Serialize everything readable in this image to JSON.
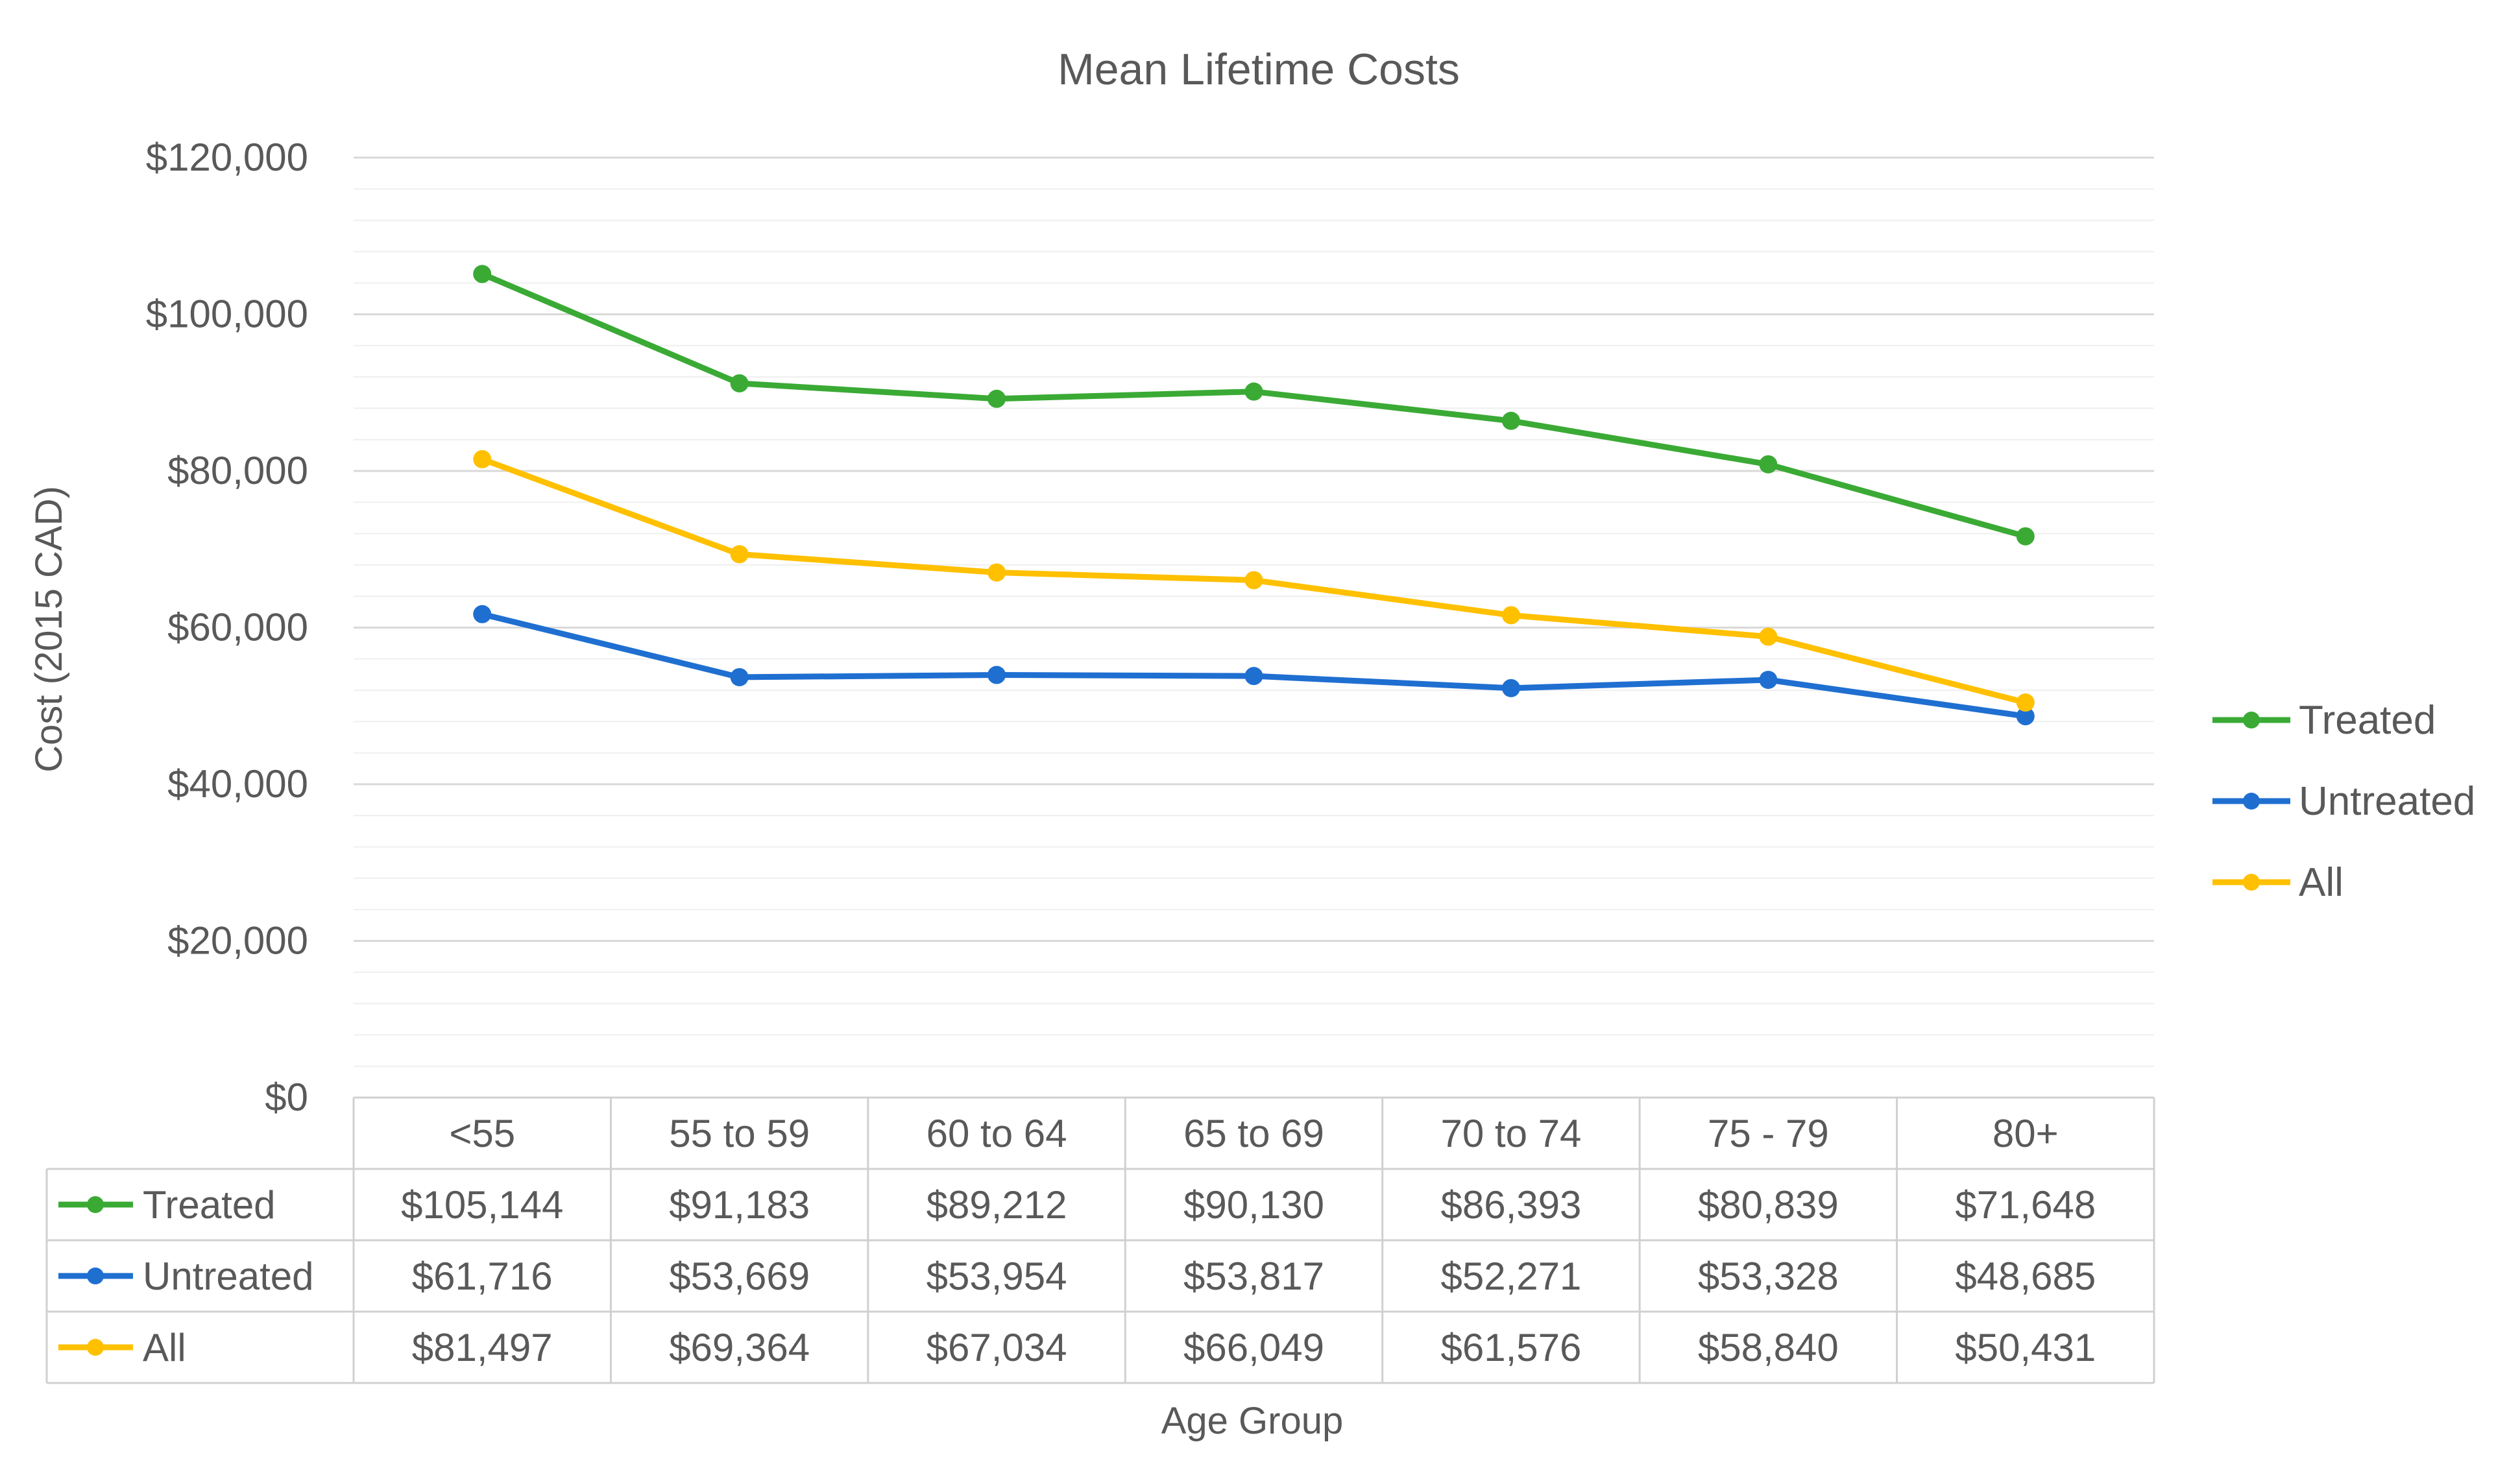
{
  "chart_data": {
    "type": "line",
    "title": "Mean Lifetime Costs",
    "xlabel": "Age Group",
    "ylabel": "Cost (2015 CAD)",
    "ylim": [
      0,
      120000
    ],
    "major_ticks": [
      0,
      20000,
      40000,
      60000,
      80000,
      100000,
      120000
    ],
    "y_tick_labels": [
      "$0",
      "$20,000",
      "$40,000",
      "$60,000",
      "$80,000",
      "$100,000",
      "$120,000"
    ],
    "minor_gridlines": true,
    "legend_position": "right",
    "data_table": true,
    "categories": [
      "<55",
      "55 to 59",
      "60 to 64",
      "65 to 69",
      "70 to 74",
      "75 - 79",
      "80+"
    ],
    "series": [
      {
        "name": "Treated",
        "color": "#3aaa35",
        "values": [
          105144,
          91183,
          89212,
          90130,
          86393,
          80839,
          71648
        ],
        "labels": [
          "$105,144",
          "$91,183",
          "$89,212",
          "$90,130",
          "$86,393",
          "$80,839",
          "$71,648"
        ]
      },
      {
        "name": "Untreated",
        "color": "#1f6fd1",
        "values": [
          61716,
          53669,
          53954,
          53817,
          52271,
          53328,
          48685
        ],
        "labels": [
          "$61,716",
          "$53,669",
          "$53,954",
          "$53,817",
          "$52,271",
          "$53,328",
          "$48,685"
        ]
      },
      {
        "name": "All",
        "color": "#ffc000",
        "values": [
          81497,
          69364,
          67034,
          66049,
          61576,
          58840,
          50431
        ],
        "labels": [
          "$81,497",
          "$69,364",
          "$67,034",
          "$66,049",
          "$61,576",
          "$58,840",
          "$50,431"
        ]
      }
    ]
  }
}
